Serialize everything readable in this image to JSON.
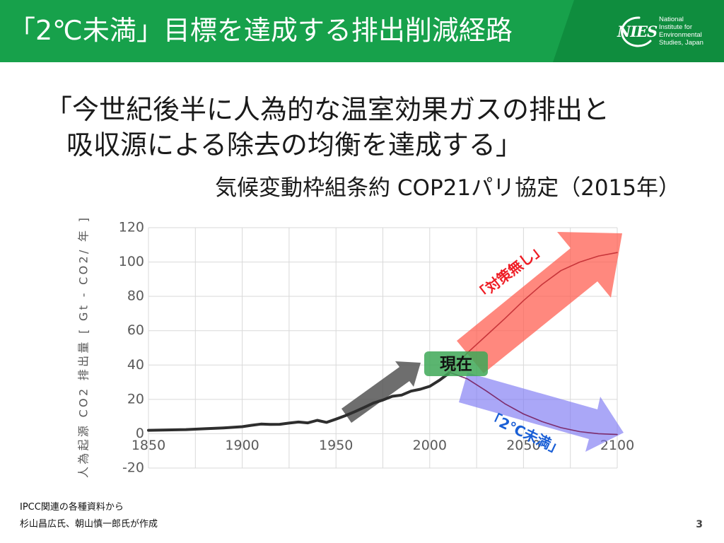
{
  "header": {
    "title": "「2℃未満」目標を達成する排出削減経路",
    "logo_mark": "NIES",
    "logo_text": [
      "National",
      "Institute for",
      "Environmental",
      "Studies, Japan"
    ],
    "background_color": "#17a14b",
    "accent_band_color": "#0f8d3e"
  },
  "quote": {
    "lines": [
      "「今世紀後半に人為的な温室効果ガスの排出と",
      "吸収源による除去の均衡を達成する」"
    ]
  },
  "citation": "気候変動枠組条約 COP21パリ協定（2015年）",
  "chart_data": {
    "type": "line",
    "title": "",
    "xlabel": "",
    "ylabel": "人為起源 CO2 排出量 [ Gt - CO2/ 年 ]",
    "xlim": [
      1850,
      2100
    ],
    "ylim": [
      -20,
      120
    ],
    "xticks": [
      1850,
      1900,
      1950,
      2000,
      2050,
      2100
    ],
    "yticks": [
      -20,
      0,
      20,
      40,
      60,
      80,
      100,
      120
    ],
    "grid": true,
    "series": [
      {
        "x": [
          1850,
          1860,
          1870,
          1880,
          1890,
          1900,
          1905,
          1910,
          1915,
          1920,
          1925,
          1930,
          1935,
          1940,
          1945,
          1950,
          1955,
          1960,
          1965,
          1970,
          1975,
          1980,
          1985,
          1990,
          1995,
          2000,
          2005,
          2010
        ],
        "y": [
          2.0,
          2.2,
          2.4,
          2.9,
          3.4,
          4.1,
          4.9,
          5.6,
          5.4,
          5.5,
          6.2,
          6.8,
          6.3,
          7.8,
          6.6,
          8.5,
          10.5,
          12.8,
          15.3,
          17.9,
          19.6,
          21.8,
          22.5,
          24.8,
          25.9,
          27.6,
          31.0,
          35.0
        ],
        "color": "#2e2e2e",
        "band_color": "#555555"
      },
      {
        "name": "「対策無し」",
        "x": [
          2010,
          2020,
          2030,
          2040,
          2050,
          2060,
          2070,
          2080,
          2090,
          2100
        ],
        "y": [
          35,
          47,
          57,
          67,
          77.5,
          87,
          95,
          100,
          103.5,
          105.5
        ],
        "color": "#c8353a",
        "band_color": "#ff5a4c",
        "label_color": "#ee1c24"
      },
      {
        "name": "「2℃未満」",
        "x": [
          2010,
          2020,
          2030,
          2040,
          2050,
          2060,
          2070,
          2080,
          2090,
          2100
        ],
        "y": [
          36,
          32,
          25,
          17.5,
          11.5,
          7,
          3.5,
          1.2,
          0,
          -0.5
        ],
        "color": "#7d2c6c",
        "band_color": "#7d78f2",
        "label_color": "#1a5fd6"
      }
    ],
    "annotations": [
      {
        "text": "現在",
        "color": "#3ea857"
      }
    ]
  },
  "footer": {
    "note_lines": [
      "IPCC関連の各種資料から",
      "杉山昌広氏、朝山慎一郎氏が作成"
    ],
    "page_number": "3"
  }
}
